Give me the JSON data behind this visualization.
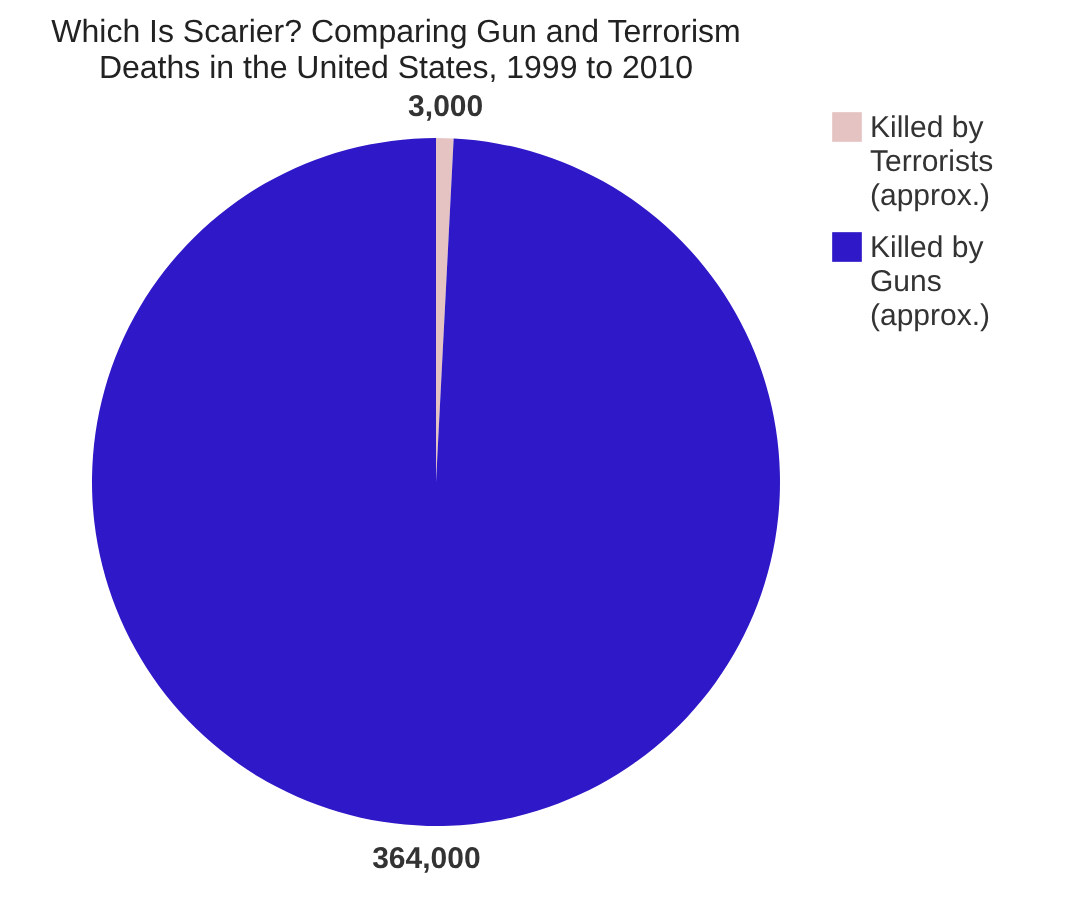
{
  "chart_data": {
    "type": "pie",
    "title": "Which Is Scarier? Comparing Gun and Terrorism Deaths in the United States, 1999 to 2010",
    "categories": [
      "Killed by Terrorists (approx.)",
      "Killed by Guns (approx.)"
    ],
    "values": [
      3000,
      364000
    ],
    "colors": [
      "#e6c3c3",
      "#2f18c7"
    ],
    "value_labels": [
      "3,000",
      "364,000"
    ],
    "legend": "right"
  }
}
